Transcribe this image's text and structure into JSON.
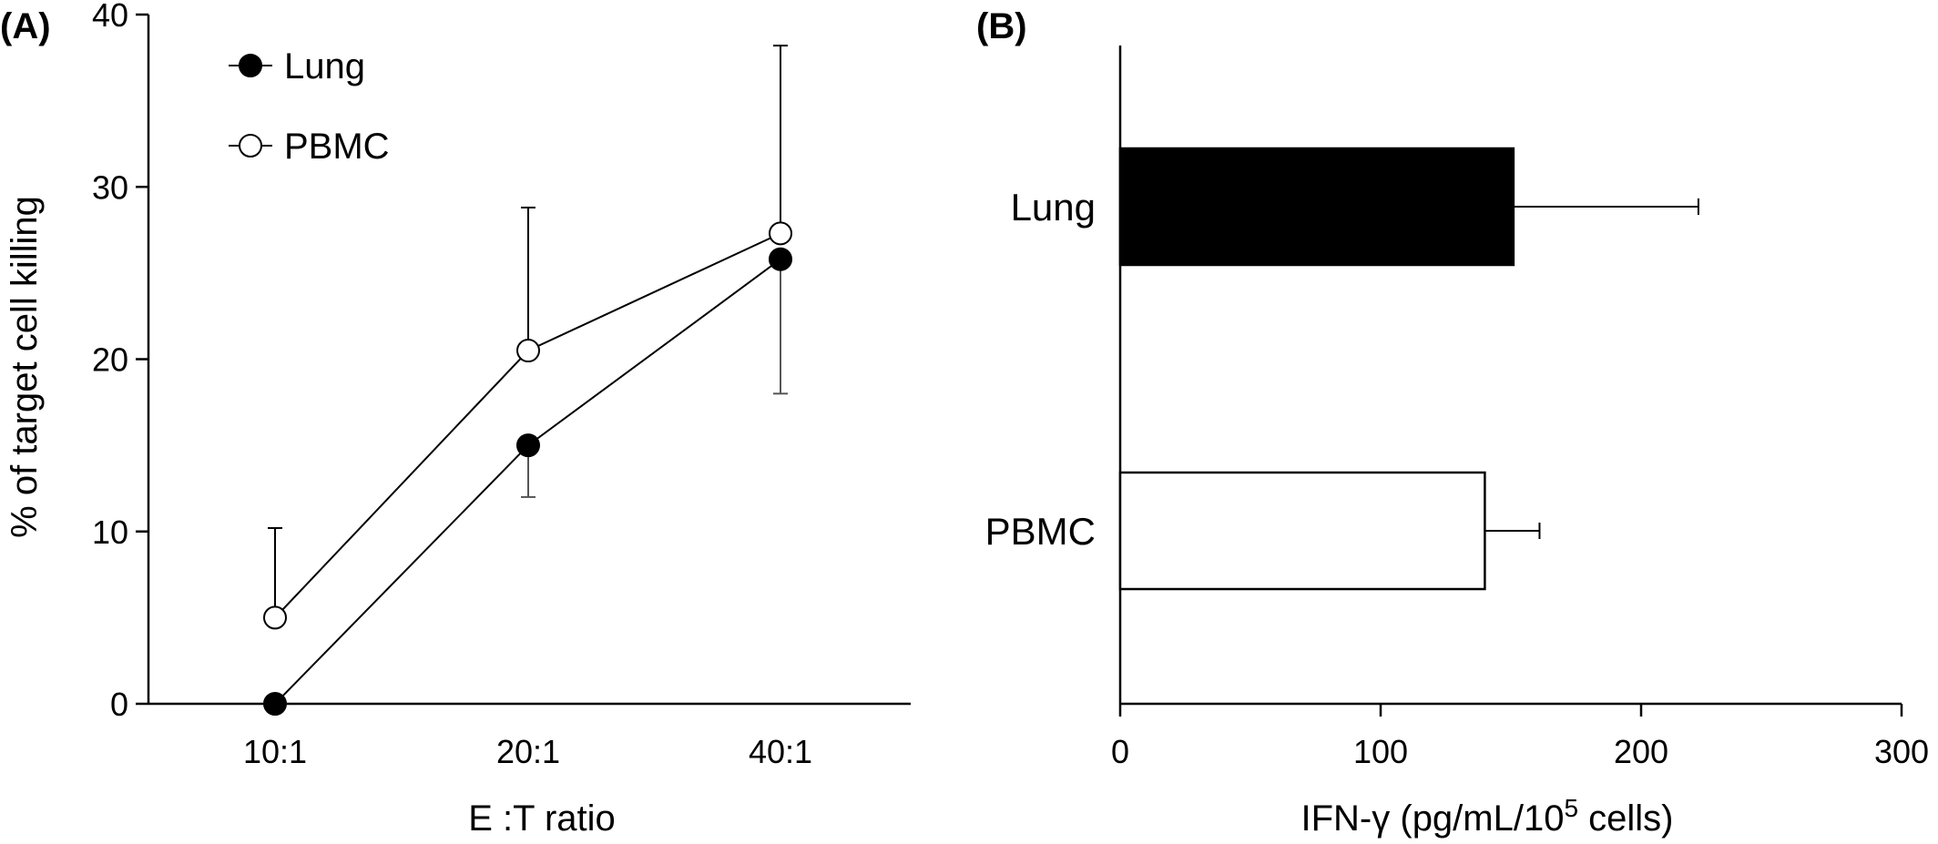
{
  "chart_data": [
    {
      "panel": "(A)",
      "type": "line",
      "x_label": "E :T ratio",
      "y_label": "% of target cell killing",
      "categories": [
        "10:1",
        "20:1",
        "40:1"
      ],
      "ylim": [
        0,
        40
      ],
      "y_ticks": [
        "0",
        "10",
        "20",
        "30",
        "40"
      ],
      "grid": false,
      "legend_position": "top-left",
      "series": [
        {
          "name": "Lung",
          "marker": "filled-circle",
          "values": [
            0,
            15,
            25.8
          ],
          "error_low": [
            null,
            12,
            18
          ],
          "error_high": [
            null,
            null,
            null
          ]
        },
        {
          "name": "PBMC",
          "marker": "open-circle",
          "values": [
            5,
            20.5,
            27.3
          ],
          "error_low": [
            null,
            null,
            null
          ],
          "error_high": [
            10.2,
            28.8,
            38.2
          ]
        }
      ]
    },
    {
      "panel": "(B)",
      "type": "bar",
      "orientation": "horizontal",
      "x_label_main": "IFN-γ (pg/mL/10",
      "x_label_sup": "5",
      "x_label_end": " cells)",
      "categories": [
        "Lung",
        "PBMC"
      ],
      "values": [
        151,
        140
      ],
      "error_high": [
        222,
        161
      ],
      "bar_fills": [
        "#000000",
        "#ffffff"
      ],
      "xlim": [
        0,
        300
      ],
      "x_ticks": [
        "0",
        "100",
        "200",
        "300"
      ],
      "grid": false
    }
  ]
}
